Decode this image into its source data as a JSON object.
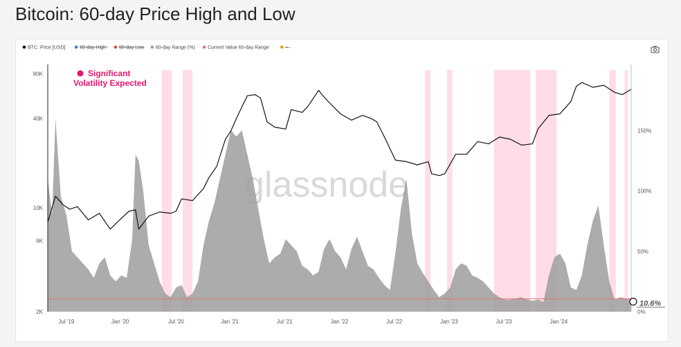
{
  "page": {
    "title": "Bitcoin: 60-day Price High and Low"
  },
  "toolbar": {
    "camera_icon": "camera-icon"
  },
  "colors": {
    "price": "#111111",
    "high": "#2f7fd6",
    "low": "#e0474c",
    "range": "#9e9e9e",
    "current": "#e57373",
    "highlight": "#ffd6e2",
    "accent": "#e8166b"
  },
  "chart_data": {
    "type": "area",
    "title": "Bitcoin: 60-day Price High and Low",
    "legend": [
      {
        "name": "BTC: Price [USD]",
        "color": "#111111",
        "hidden": false
      },
      {
        "name": "60-day High",
        "color": "#2f7fd6",
        "hidden": true
      },
      {
        "name": "60-day Low",
        "color": "#e0474c",
        "hidden": true
      },
      {
        "name": "60-day Range (%)",
        "color": "#9e9e9e",
        "hidden": false
      },
      {
        "name": "Current Value 60-day Range",
        "color": "#e57373",
        "hidden": false
      },
      {
        "name": "—",
        "color": "#e8a100",
        "hidden": true
      }
    ],
    "legend_position": "top-left",
    "x_ticks": [
      "Jul '19",
      "Jan '20",
      "Jul '20",
      "Jan '21",
      "Jul '21",
      "Jan '22",
      "Jul '22",
      "Jan '23",
      "Jul '23",
      "Jan '24"
    ],
    "x_range": [
      2019.38,
      2024.7
    ],
    "y_left": {
      "scale": "log",
      "range": [
        2000,
        85000
      ],
      "ticks": [
        2000,
        6000,
        10000,
        40000,
        80000
      ],
      "tick_labels": [
        "2K",
        "6K",
        "10K",
        "40K",
        "80K"
      ]
    },
    "y_right": {
      "scale": "linear",
      "range": [
        0,
        200
      ],
      "ticks": [
        0,
        50,
        100,
        150
      ],
      "tick_labels": [
        "0%",
        "50%",
        "100%",
        "150%"
      ]
    },
    "grid": false,
    "annotation": "Significant Volatility Expected",
    "watermark": "glassnode",
    "current_value_label": "10.6%",
    "current_value": 10.6,
    "highlight_periods": [
      [
        2020.42,
        2020.51
      ],
      [
        2020.61,
        2020.7
      ],
      [
        2022.82,
        2022.87
      ],
      [
        2023.02,
        2023.07
      ],
      [
        2023.45,
        2023.78
      ],
      [
        2023.83,
        2024.02
      ],
      [
        2024.5,
        2024.56
      ],
      [
        2024.64,
        2024.67
      ]
    ],
    "price": {
      "x": [
        2019.38,
        2019.45,
        2019.52,
        2019.58,
        2019.65,
        2019.75,
        2019.85,
        2019.95,
        2020.05,
        2020.12,
        2020.18,
        2020.21,
        2020.3,
        2020.4,
        2020.5,
        2020.55,
        2020.6,
        2020.7,
        2020.8,
        2020.85,
        2020.92,
        2021.0,
        2021.05,
        2021.1,
        2021.15,
        2021.2,
        2021.27,
        2021.32,
        2021.38,
        2021.45,
        2021.55,
        2021.6,
        2021.7,
        2021.75,
        2021.85,
        2021.88,
        2021.95,
        2022.05,
        2022.15,
        2022.25,
        2022.33,
        2022.38,
        2022.45,
        2022.55,
        2022.65,
        2022.75,
        2022.85,
        2022.88,
        2022.95,
        2023.0,
        2023.1,
        2023.2,
        2023.3,
        2023.4,
        2023.5,
        2023.6,
        2023.7,
        2023.8,
        2023.85,
        2023.95,
        2024.05,
        2024.15,
        2024.2,
        2024.25,
        2024.35,
        2024.45,
        2024.55,
        2024.62,
        2024.7
      ],
      "y": [
        8000,
        12000,
        10500,
        9800,
        10200,
        8300,
        9200,
        7200,
        8500,
        9500,
        9700,
        7200,
        8800,
        9400,
        9200,
        9500,
        11500,
        11200,
        13500,
        16000,
        19000,
        29000,
        33000,
        40000,
        48000,
        57000,
        58000,
        55000,
        38000,
        35000,
        34000,
        46000,
        44000,
        48000,
        62000,
        58000,
        51000,
        43000,
        39000,
        42000,
        40000,
        38000,
        30000,
        21000,
        20500,
        19500,
        20500,
        17000,
        16500,
        17000,
        23000,
        23000,
        28000,
        27000,
        30000,
        29000,
        26500,
        27000,
        34000,
        42000,
        43000,
        52000,
        66000,
        70000,
        65000,
        67000,
        60000,
        58000,
        63000
      ]
    },
    "range_pct": {
      "x": [
        2019.38,
        2019.42,
        2019.45,
        2019.5,
        2019.55,
        2019.6,
        2019.65,
        2019.7,
        2019.75,
        2019.8,
        2019.85,
        2019.9,
        2019.95,
        2020.0,
        2020.05,
        2020.1,
        2020.15,
        2020.18,
        2020.21,
        2020.25,
        2020.3,
        2020.35,
        2020.4,
        2020.45,
        2020.5,
        2020.55,
        2020.6,
        2020.65,
        2020.7,
        2020.75,
        2020.8,
        2020.85,
        2020.9,
        2020.95,
        2021.0,
        2021.05,
        2021.1,
        2021.15,
        2021.2,
        2021.25,
        2021.3,
        2021.35,
        2021.4,
        2021.45,
        2021.5,
        2021.55,
        2021.6,
        2021.65,
        2021.7,
        2021.75,
        2021.8,
        2021.85,
        2021.9,
        2021.95,
        2022.0,
        2022.05,
        2022.1,
        2022.15,
        2022.2,
        2022.25,
        2022.3,
        2022.35,
        2022.4,
        2022.45,
        2022.5,
        2022.55,
        2022.6,
        2022.65,
        2022.7,
        2022.75,
        2022.8,
        2022.85,
        2022.9,
        2022.95,
        2023.0,
        2023.05,
        2023.1,
        2023.15,
        2023.2,
        2023.25,
        2023.3,
        2023.35,
        2023.4,
        2023.45,
        2023.5,
        2023.55,
        2023.6,
        2023.65,
        2023.7,
        2023.75,
        2023.8,
        2023.85,
        2023.9,
        2023.95,
        2024.0,
        2024.05,
        2024.1,
        2024.15,
        2024.2,
        2024.25,
        2024.3,
        2024.35,
        2024.4,
        2024.45,
        2024.5,
        2024.55,
        2024.6,
        2024.65,
        2024.7
      ],
      "y": [
        110,
        80,
        160,
        95,
        80,
        50,
        45,
        40,
        35,
        28,
        40,
        45,
        30,
        25,
        30,
        28,
        60,
        130,
        125,
        100,
        55,
        40,
        25,
        15,
        12,
        20,
        22,
        12,
        15,
        25,
        55,
        75,
        90,
        110,
        130,
        150,
        145,
        150,
        130,
        110,
        85,
        60,
        40,
        45,
        48,
        60,
        55,
        50,
        38,
        35,
        30,
        33,
        52,
        60,
        50,
        45,
        35,
        52,
        62,
        50,
        38,
        35,
        28,
        22,
        18,
        48,
        85,
        110,
        65,
        40,
        32,
        25,
        18,
        12,
        15,
        20,
        35,
        40,
        38,
        30,
        28,
        25,
        20,
        15,
        12,
        10,
        10,
        11,
        12,
        10,
        9,
        10,
        8,
        30,
        45,
        48,
        40,
        20,
        18,
        30,
        55,
        75,
        88,
        55,
        25,
        10,
        12,
        11,
        10.6
      ]
    }
  }
}
